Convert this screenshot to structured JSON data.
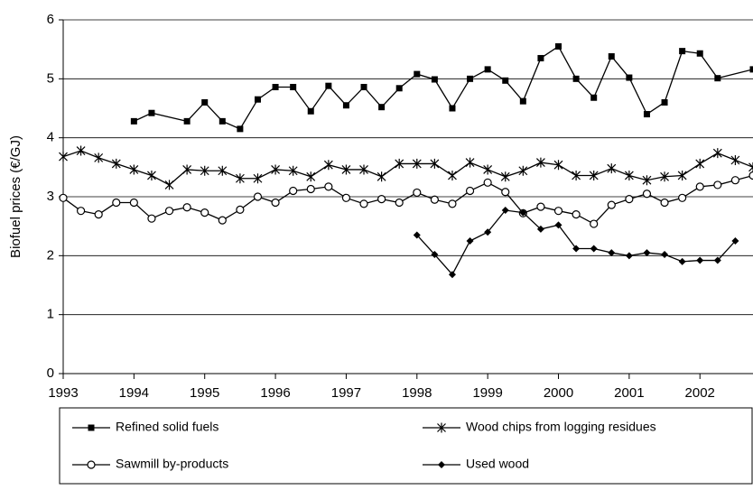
{
  "chart_data": {
    "type": "line",
    "ylabel": "Biofuel prices (€/GJ)",
    "xlim": [
      1993,
      2002.75
    ],
    "ylim": [
      0,
      6
    ],
    "xticks": [
      1993,
      1994,
      1995,
      1996,
      1997,
      1998,
      1999,
      2000,
      2001,
      2002
    ],
    "yticks": [
      0,
      1,
      2,
      3,
      4,
      5,
      6
    ],
    "grid": true,
    "series": [
      {
        "name": "Refined solid fuels",
        "color": "#000000",
        "marker": "square",
        "x": [
          1994,
          1994.25,
          1994.75,
          1995,
          1995.25,
          1995.5,
          1995.75,
          1996,
          1996.25,
          1996.5,
          1996.75,
          1997,
          1997.25,
          1997.5,
          1997.75,
          1998,
          1998.25,
          1998.5,
          1998.75,
          1999,
          1999.25,
          1999.5,
          1999.75,
          2000,
          2000.25,
          2000.5,
          2000.75,
          2001,
          2001.25,
          2001.5,
          2001.75,
          2002,
          2002.25,
          2002.75
        ],
        "values": [
          4.28,
          4.42,
          4.28,
          4.6,
          4.28,
          4.15,
          4.65,
          4.86,
          4.86,
          4.45,
          4.88,
          4.55,
          4.86,
          4.52,
          4.84,
          5.08,
          4.99,
          4.5,
          5.0,
          5.16,
          4.97,
          4.62,
          5.35,
          5.55,
          5.0,
          4.68,
          5.38,
          5.02,
          4.4,
          4.6,
          5.47,
          5.43,
          5.01,
          5.16
        ]
      },
      {
        "name": "Wood chips from logging residues",
        "color": "#000000",
        "marker": "star",
        "x": [
          1993,
          1993.25,
          1993.5,
          1993.75,
          1994,
          1994.25,
          1994.5,
          1994.75,
          1995,
          1995.25,
          1995.5,
          1995.75,
          1996,
          1996.25,
          1996.5,
          1996.75,
          1997,
          1997.25,
          1997.5,
          1997.75,
          1998,
          1998.25,
          1998.5,
          1998.75,
          1999,
          1999.25,
          1999.5,
          1999.75,
          2000,
          2000.25,
          2000.5,
          2000.75,
          2001,
          2001.25,
          2001.5,
          2001.75,
          2002,
          2002.25,
          2002.5,
          2002.75
        ],
        "values": [
          3.68,
          3.78,
          3.66,
          3.56,
          3.46,
          3.36,
          3.2,
          3.46,
          3.44,
          3.44,
          3.31,
          3.31,
          3.46,
          3.44,
          3.34,
          3.54,
          3.46,
          3.46,
          3.34,
          3.56,
          3.56,
          3.56,
          3.36,
          3.58,
          3.46,
          3.34,
          3.44,
          3.58,
          3.54,
          3.36,
          3.36,
          3.48,
          3.36,
          3.28,
          3.34,
          3.36,
          3.56,
          3.74,
          3.62,
          3.5
        ]
      },
      {
        "name": "Sawmill by-products",
        "color": "#000000",
        "marker": "circle",
        "x": [
          1993,
          1993.25,
          1993.5,
          1993.75,
          1994,
          1994.25,
          1994.5,
          1994.75,
          1995,
          1995.25,
          1995.5,
          1995.75,
          1996,
          1996.25,
          1996.5,
          1996.75,
          1997,
          1997.25,
          1997.5,
          1997.75,
          1998,
          1998.25,
          1998.5,
          1998.75,
          1999,
          1999.25,
          1999.5,
          1999.75,
          2000,
          2000.25,
          2000.5,
          2000.75,
          2001,
          2001.25,
          2001.5,
          2001.75,
          2002,
          2002.25,
          2002.5,
          2002.75
        ],
        "values": [
          2.98,
          2.76,
          2.7,
          2.9,
          2.9,
          2.63,
          2.76,
          2.82,
          2.73,
          2.6,
          2.78,
          3.0,
          2.9,
          3.1,
          3.13,
          3.17,
          2.98,
          2.88,
          2.96,
          2.9,
          3.07,
          2.95,
          2.88,
          3.1,
          3.24,
          3.08,
          2.72,
          2.83,
          2.76,
          2.7,
          2.54,
          2.86,
          2.96,
          3.05,
          2.9,
          2.98,
          3.17,
          3.2,
          3.28,
          3.36
        ]
      },
      {
        "name": "Used wood",
        "color": "#000000",
        "marker": "diamond",
        "x": [
          1998,
          1998.25,
          1998.5,
          1998.75,
          1999,
          1999.25,
          1999.5,
          1999.75,
          2000,
          2000.25,
          2000.5,
          2000.75,
          2001,
          2001.25,
          2001.5,
          2001.75,
          2002,
          2002.25,
          2002.5
        ],
        "values": [
          2.35,
          2.02,
          1.68,
          2.25,
          2.4,
          2.77,
          2.73,
          2.45,
          2.52,
          2.12,
          2.12,
          2.05,
          2.0,
          2.05,
          2.02,
          1.9,
          1.92,
          1.92,
          2.25
        ]
      }
    ]
  }
}
